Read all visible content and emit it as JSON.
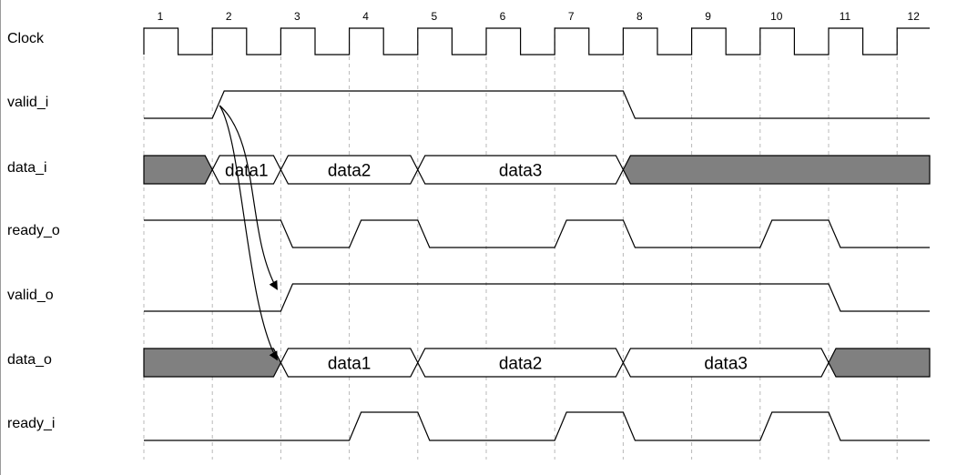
{
  "cycles": [
    "1",
    "2",
    "3",
    "4",
    "5",
    "6",
    "7",
    "8",
    "9",
    "10",
    "11",
    "12"
  ],
  "signals": {
    "clock": {
      "label": "Clock",
      "kind": "clock"
    },
    "valid_i": {
      "label": "valid_i",
      "kind": "bit",
      "initial": 0,
      "transitions": [
        [
          2,
          1
        ],
        [
          8,
          0
        ]
      ]
    },
    "data_i": {
      "label": "data_i",
      "kind": "bus",
      "segments": [
        {
          "from": 1,
          "to": 2,
          "value": null
        },
        {
          "from": 2,
          "to": 3,
          "value": "data1"
        },
        {
          "from": 3,
          "to": 5,
          "value": "data2"
        },
        {
          "from": 5,
          "to": 8,
          "value": "data3"
        },
        {
          "from": 8,
          "to": 12.5,
          "value": null
        }
      ]
    },
    "ready_o": {
      "label": "ready_o",
      "kind": "bit",
      "initial": 1,
      "transitions": [
        [
          3,
          0
        ],
        [
          4,
          1
        ],
        [
          5,
          0
        ],
        [
          7,
          1
        ],
        [
          8,
          0
        ],
        [
          10,
          1
        ],
        [
          11,
          0
        ]
      ]
    },
    "valid_o": {
      "label": "valid_o",
      "kind": "bit",
      "initial": 0,
      "transitions": [
        [
          3,
          1
        ],
        [
          11,
          0
        ]
      ]
    },
    "data_o": {
      "label": "data_o",
      "kind": "bus",
      "segments": [
        {
          "from": 1,
          "to": 3,
          "value": null
        },
        {
          "from": 3,
          "to": 5,
          "value": "data1"
        },
        {
          "from": 5,
          "to": 8,
          "value": "data2"
        },
        {
          "from": 8,
          "to": 11,
          "value": "data3"
        },
        {
          "from": 11,
          "to": 12.5,
          "value": null
        }
      ]
    },
    "ready_i": {
      "label": "ready_i",
      "kind": "bit",
      "initial": 0,
      "transitions": [
        [
          4,
          1
        ],
        [
          5,
          0
        ],
        [
          7,
          1
        ],
        [
          8,
          0
        ],
        [
          10,
          1
        ],
        [
          11,
          0
        ]
      ]
    }
  },
  "signal_order": [
    "clock",
    "valid_i",
    "data_i",
    "ready_o",
    "valid_o",
    "data_o",
    "ready_i"
  ],
  "dependencies": [
    {
      "from": "valid_i",
      "to": "valid_o",
      "at_cycle": 2,
      "target_cycle": 3
    },
    {
      "from": "valid_i",
      "to": "data_o",
      "at_cycle": 2,
      "target_cycle": 3
    }
  ],
  "colors": {
    "invalid_fill": "#808080",
    "line": "#000000",
    "grid": "#b8b8b8"
  }
}
